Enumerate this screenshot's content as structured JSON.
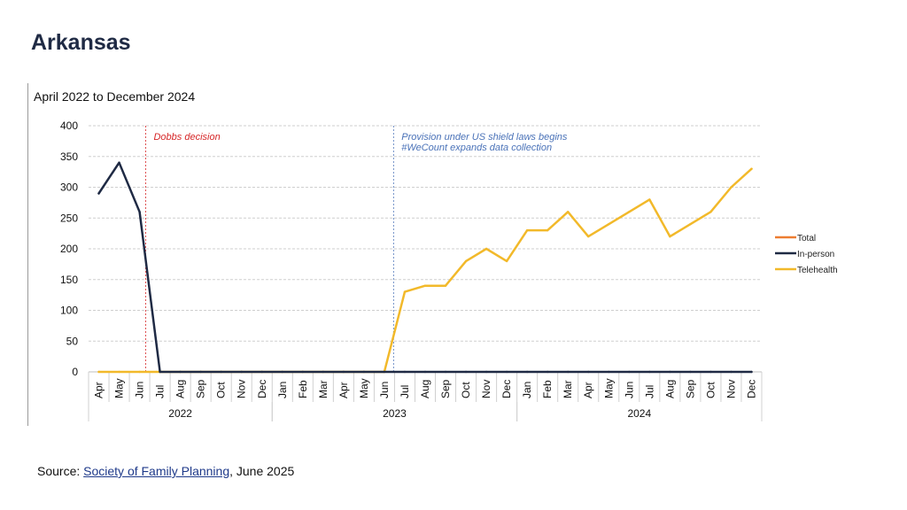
{
  "page": {
    "title": "Arkansas",
    "source_prefix": "Source: ",
    "source_link": "Society of Family Planning",
    "source_suffix": ", June 2025"
  },
  "chart_data": {
    "type": "line",
    "subtitle": "April 2022 to December 2024",
    "months": [
      "Apr",
      "May",
      "Jun",
      "Jul",
      "Aug",
      "Sep",
      "Oct",
      "Nov",
      "Dec",
      "Jan",
      "Feb",
      "Mar",
      "Apr",
      "May",
      "Jun",
      "Jul",
      "Aug",
      "Sep",
      "Oct",
      "Nov",
      "Dec",
      "Jan",
      "Feb",
      "Mar",
      "Apr",
      "May",
      "Jun",
      "Jul",
      "Aug",
      "Sep",
      "Oct",
      "Nov",
      "Dec"
    ],
    "years": [
      {
        "label": "2022",
        "start": 0,
        "end": 8
      },
      {
        "label": "2023",
        "start": 9,
        "end": 20
      },
      {
        "label": "2024",
        "start": 21,
        "end": 32
      }
    ],
    "ylim": [
      0,
      400
    ],
    "yticks": [
      0,
      50,
      100,
      150,
      200,
      250,
      300,
      350,
      400
    ],
    "grid": true,
    "legend_position": "right",
    "series": [
      {
        "name": "Total",
        "color": "#ed7d31",
        "values": []
      },
      {
        "name": "In-person",
        "color": "#1f2a44",
        "values": [
          290,
          340,
          260,
          0,
          0,
          0,
          0,
          0,
          0,
          0,
          0,
          0,
          0,
          0,
          0,
          0,
          0,
          0,
          0,
          0,
          0,
          0,
          0,
          0,
          0,
          0,
          0,
          0,
          0,
          0,
          0,
          0,
          0
        ]
      },
      {
        "name": "Telehealth",
        "color": "#f2b92a",
        "values": [
          0,
          0,
          0,
          0,
          0,
          0,
          0,
          0,
          0,
          0,
          0,
          0,
          0,
          0,
          0,
          130,
          140,
          140,
          180,
          200,
          180,
          230,
          230,
          260,
          220,
          240,
          260,
          280,
          220,
          240,
          260,
          300,
          330
        ]
      }
    ],
    "annotations": [
      {
        "index": 2.3,
        "color": "#d62728",
        "lines": [
          "Dobbs decision"
        ]
      },
      {
        "index": 14.45,
        "color": "#4a72b8",
        "lines": [
          "Provision under US shield laws begins",
          "#WeCount expands data collection"
        ]
      }
    ]
  }
}
